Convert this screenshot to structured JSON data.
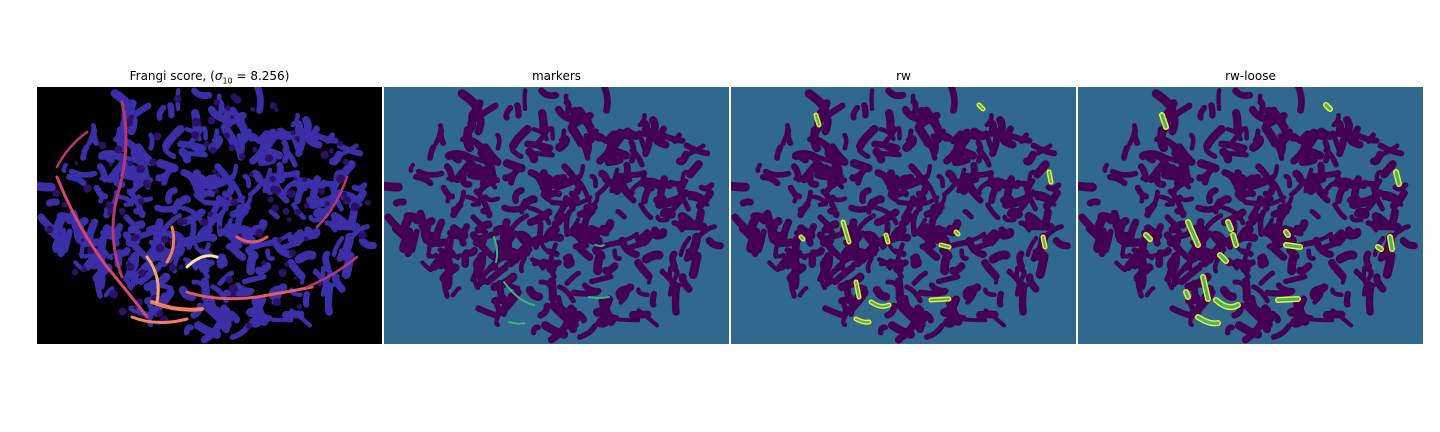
{
  "panels": [
    {
      "title_prefix": "Frangi score, (",
      "title_sigma": "σ",
      "title_sub": "10",
      "title_suffix": " = 8.256)",
      "colormap": "magma"
    },
    {
      "title": "markers",
      "colormap": "viridis"
    },
    {
      "title": "rw",
      "colormap": "viridis"
    },
    {
      "title": "rw-loose",
      "colormap": "viridis"
    }
  ],
  "colors": {
    "background_black": "#000000",
    "magma_dark_purple": "#2b1167",
    "magma_blue_purple": "#3b2fa8",
    "magma_magenta": "#b5367a",
    "magma_orange": "#f07f5a",
    "magma_light": "#fde4a5",
    "viridis_bg": "#31688e",
    "viridis_dark": "#440154",
    "viridis_teal": "#35b779",
    "viridis_yellow": "#fde725"
  }
}
